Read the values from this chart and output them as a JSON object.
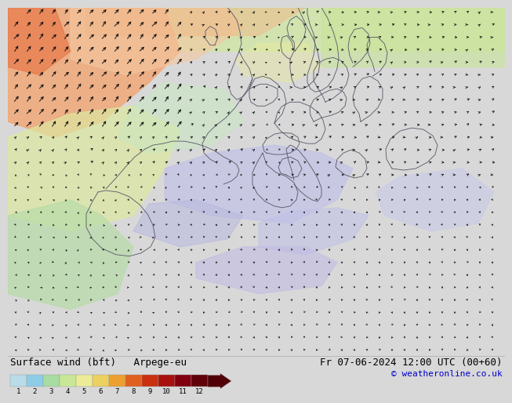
{
  "title_left": "Surface wind (bft)   Arpege-eu",
  "title_right": "Fr 07-06-2024 12:00 UTC (00+60)",
  "credit": "© weatheronline.co.uk",
  "colorbar_labels": [
    "1",
    "2",
    "3",
    "4",
    "5",
    "6",
    "7",
    "8",
    "9",
    "10",
    "11",
    "12"
  ],
  "cb_colors": [
    "#b8dce8",
    "#8ecde8",
    "#a8dca0",
    "#c8e898",
    "#ecec98",
    "#ecd060",
    "#eca030",
    "#e06020",
    "#c83010",
    "#a81010",
    "#800010",
    "#600008"
  ],
  "map_bg": "#b8dff0",
  "sea_color": "#b8e0f0",
  "land_yellow": "#e8eca0",
  "land_green": "#b8e0a8",
  "orange_region": "#f0a878",
  "salmon_region": "#f0c0a0",
  "purple_region": "#b8b8e0",
  "light_purple": "#c8c8ec",
  "bottom_bg": "#d8d8d8",
  "title_fontsize": 9,
  "credit_color": "#0000cc"
}
